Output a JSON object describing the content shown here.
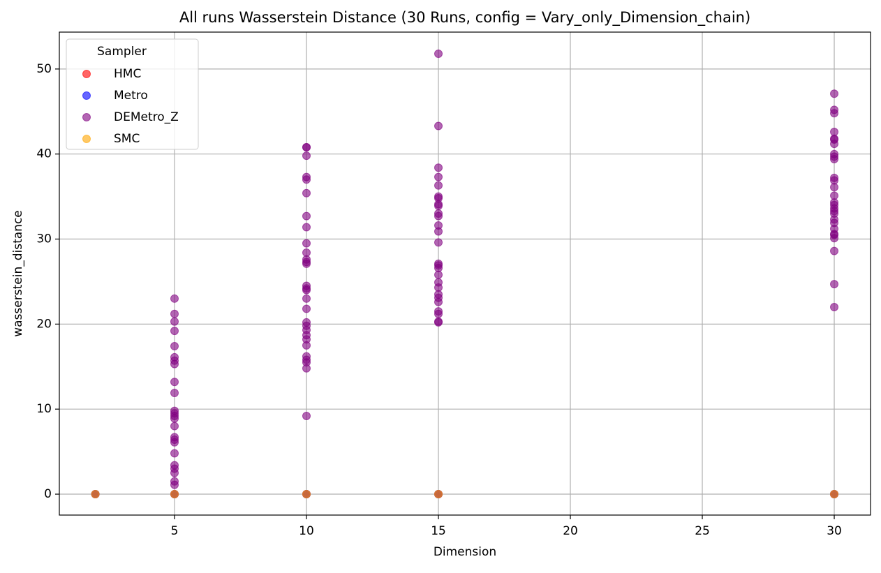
{
  "chart_data": {
    "type": "scatter",
    "title": "All runs Wasserstein Distance (30 Runs, config = Vary_only_Dimension_chain)",
    "x_label": "Dimension",
    "y_label": "wasserstein_distance",
    "legend_title": "Sampler",
    "legend_loc": "upper left",
    "grid": true,
    "alpha": 0.6,
    "xlim": [
      0.635,
      31.375
    ],
    "ylim": [
      -2.46,
      54.34
    ],
    "xticks": [
      5,
      10,
      15,
      20,
      25,
      30
    ],
    "yticks": [
      0,
      10,
      20,
      30,
      40,
      50
    ],
    "series": [
      {
        "name": "HMC",
        "color": "#ff0000",
        "x": [
          2,
          5,
          10,
          15,
          30
        ],
        "values": [
          0,
          0,
          0,
          0,
          0
        ]
      },
      {
        "name": "Metro",
        "color": "#0000ff",
        "x": [
          2,
          5,
          10,
          15,
          30
        ],
        "values": [
          0,
          0,
          0,
          0,
          0
        ]
      },
      {
        "name": "DEMetro_Z",
        "color": "#800080",
        "x": [
          2,
          5,
          5,
          5,
          5,
          5,
          5,
          5,
          5,
          5,
          5,
          5,
          5,
          5,
          5,
          5,
          5,
          5,
          5,
          5,
          5,
          5,
          5,
          5,
          5,
          5,
          10,
          10,
          10,
          10,
          10,
          10,
          10,
          10,
          10,
          10,
          10,
          10,
          10,
          10,
          10,
          10,
          10,
          10,
          10,
          10,
          10,
          10,
          10,
          10,
          10,
          10,
          10,
          10,
          10,
          10,
          15,
          15,
          15,
          15,
          15,
          15,
          15,
          15,
          15,
          15,
          15,
          15,
          15,
          15,
          15,
          15,
          15,
          15,
          15,
          15,
          15,
          15,
          15,
          15,
          15,
          15,
          15,
          15,
          30,
          30,
          30,
          30,
          30,
          30,
          30,
          30,
          30,
          30,
          30,
          30,
          30,
          30,
          30,
          30,
          30,
          30,
          30,
          30,
          30,
          30,
          30,
          30,
          30,
          30,
          30,
          30,
          30
        ],
        "values": [
          0,
          23.0,
          21.2,
          20.3,
          19.2,
          17.4,
          16.1,
          15.7,
          15.3,
          13.2,
          11.9,
          9.8,
          9.5,
          9.2,
          8.9,
          8.0,
          6.7,
          6.4,
          6.1,
          4.8,
          3.4,
          3.0,
          2.5,
          1.5,
          1.1,
          0,
          40.8,
          40.8,
          39.8,
          37.3,
          37.0,
          35.4,
          32.7,
          31.4,
          29.5,
          28.4,
          27.6,
          27.3,
          27.1,
          24.5,
          24.2,
          24.0,
          23.0,
          21.8,
          20.2,
          19.8,
          19.3,
          18.7,
          18.2,
          17.5,
          16.2,
          15.8,
          15.5,
          14.8,
          9.2,
          0,
          51.8,
          43.3,
          38.4,
          37.3,
          36.3,
          35.0,
          34.8,
          34.1,
          33.9,
          33.0,
          32.7,
          31.6,
          30.9,
          29.6,
          27.1,
          26.9,
          26.6,
          25.8,
          24.9,
          24.3,
          23.5,
          23.1,
          22.6,
          21.5,
          21.2,
          20.3,
          20.2,
          0,
          47.1,
          45.2,
          44.8,
          42.6,
          41.8,
          41.7,
          41.2,
          40.0,
          39.7,
          39.4,
          37.2,
          36.9,
          36.1,
          35.1,
          34.3,
          34.0,
          33.6,
          33.3,
          33.0,
          32.3,
          31.9,
          31.2,
          30.6,
          30.5,
          30.1,
          28.6,
          24.7,
          22.0,
          0
        ]
      },
      {
        "name": "SMC",
        "color": "#ffa500",
        "x": [
          2,
          5,
          10,
          15,
          30
        ],
        "values": [
          0,
          0,
          0,
          0,
          0
        ]
      }
    ]
  }
}
